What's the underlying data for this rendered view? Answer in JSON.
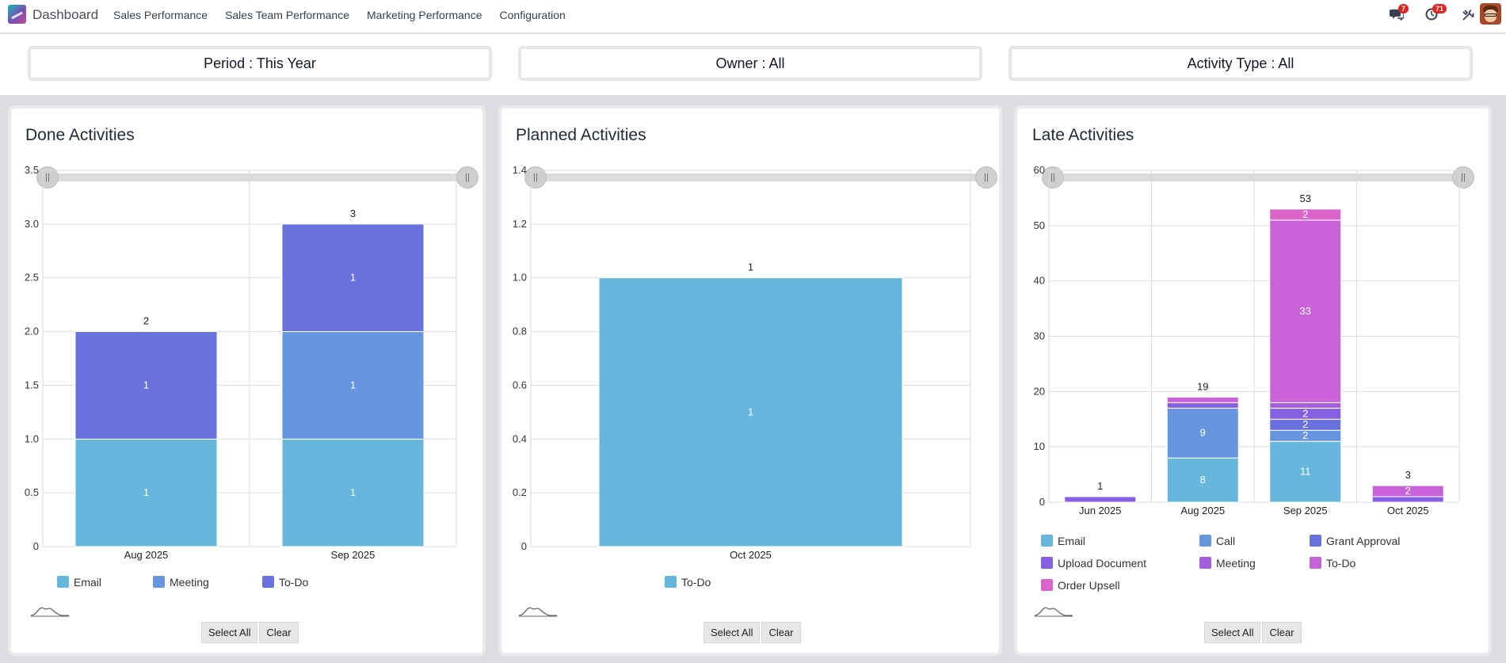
{
  "app": {
    "title": "Dashboard"
  },
  "nav": {
    "items": [
      "Sales Performance",
      "Sales Team Performance",
      "Marketing Performance",
      "Configuration"
    ]
  },
  "systray": {
    "messages_count": "7",
    "activities_count": "71"
  },
  "filters": {
    "period": "Period : This Year",
    "owner": "Owner : All",
    "activity_type": "Activity Type : All"
  },
  "buttons": {
    "select_all": "Select All",
    "clear": "Clear"
  },
  "slider_handle_glyph": "||",
  "colors": {
    "Email": "#66b6dd",
    "Meeting": "#6895df",
    "To-Do": "#6871dd",
    "Call": "#6895df",
    "Grant Approval": "#6871dd",
    "Upload Document": "#8560e3",
    "Meeting_late": "#a55ddf",
    "To-Do_late": "#c863d9",
    "Order Upsell": "#db63cc"
  },
  "cards": [
    {
      "title": "Done Activities",
      "legend": [
        {
          "label": "Email",
          "color": "#66b6dd"
        },
        {
          "label": "Meeting",
          "color": "#6895df"
        },
        {
          "label": "To-Do",
          "color": "#6871dd"
        }
      ]
    },
    {
      "title": "Planned Activities",
      "legend": [
        {
          "label": "To-Do",
          "color": "#66b6dd"
        }
      ]
    },
    {
      "title": "Late Activities",
      "legend": [
        {
          "label": "Email",
          "color": "#66b6dd"
        },
        {
          "label": "Call",
          "color": "#6895df"
        },
        {
          "label": "Grant Approval",
          "color": "#6871dd"
        },
        {
          "label": "Upload Document",
          "color": "#8560e3"
        },
        {
          "label": "Meeting",
          "color": "#a55ddf"
        },
        {
          "label": "To-Do",
          "color": "#c863d9"
        },
        {
          "label": "Order Upsell",
          "color": "#db63cc"
        }
      ]
    }
  ],
  "chart_data": [
    {
      "type": "bar",
      "stacked": true,
      "title": "Done Activities",
      "categories": [
        "Aug 2025",
        "Sep 2025"
      ],
      "ylim": [
        0,
        3.5
      ],
      "yticks": [
        "0",
        "0.5",
        "1.0",
        "1.5",
        "2.0",
        "2.5",
        "3.0",
        "3.5"
      ],
      "grid": true,
      "legend_position": "bottom",
      "series": [
        {
          "name": "Email",
          "color": "#66b6dd",
          "values": [
            1,
            1
          ]
        },
        {
          "name": "Meeting",
          "color": "#6895df",
          "values": [
            0,
            1
          ]
        },
        {
          "name": "To-Do",
          "color": "#6871dd",
          "values": [
            1,
            1
          ]
        }
      ],
      "totals": [
        2,
        3
      ]
    },
    {
      "type": "bar",
      "stacked": true,
      "title": "Planned Activities",
      "categories": [
        "Oct 2025"
      ],
      "ylim": [
        0,
        1.4
      ],
      "yticks": [
        "0",
        "0.2",
        "0.4",
        "0.6",
        "0.8",
        "1.0",
        "1.2",
        "1.4"
      ],
      "grid": true,
      "legend_position": "bottom",
      "series": [
        {
          "name": "To-Do",
          "color": "#66b6dd",
          "values": [
            1
          ]
        }
      ],
      "totals": [
        1
      ]
    },
    {
      "type": "bar",
      "stacked": true,
      "title": "Late Activities",
      "categories": [
        "Jun 2025",
        "Aug 2025",
        "Sep 2025",
        "Oct 2025"
      ],
      "ylim": [
        0,
        60
      ],
      "yticks": [
        "0",
        "10",
        "20",
        "30",
        "40",
        "50",
        "60"
      ],
      "grid": true,
      "legend_position": "bottom",
      "series": [
        {
          "name": "Email",
          "color": "#66b6dd",
          "values": [
            0,
            8,
            11,
            0
          ]
        },
        {
          "name": "Call",
          "color": "#6895df",
          "values": [
            0,
            9,
            2,
            0
          ]
        },
        {
          "name": "Grant Approval",
          "color": "#6871dd",
          "values": [
            0,
            0,
            2,
            0
          ]
        },
        {
          "name": "Upload Document",
          "color": "#8560e3",
          "values": [
            1,
            1,
            2,
            1
          ]
        },
        {
          "name": "Meeting",
          "color": "#a55ddf",
          "values": [
            0,
            0,
            1,
            0
          ]
        },
        {
          "name": "To-Do",
          "color": "#c863d9",
          "values": [
            0,
            1,
            33,
            2
          ]
        },
        {
          "name": "Order Upsell",
          "color": "#db63cc",
          "values": [
            0,
            0,
            2,
            0
          ]
        }
      ],
      "totals": [
        1,
        19,
        53,
        3
      ]
    }
  ]
}
